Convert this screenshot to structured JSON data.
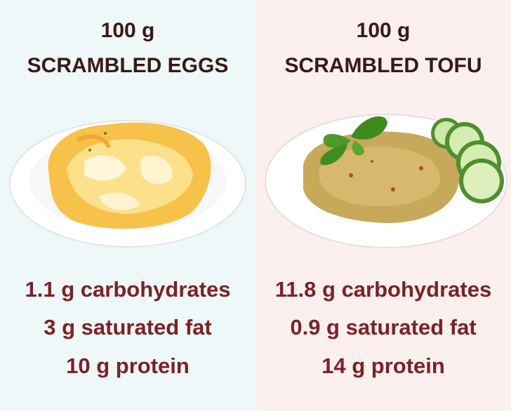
{
  "panels": [
    {
      "title": [
        "100 g",
        "SCRAMBLED EGGS"
      ],
      "facts": [
        "1.1 g carbohydrates",
        "3 g saturated fat",
        "10 g protein"
      ]
    },
    {
      "title": [
        "100 g",
        "SCRAMBLED TOFU"
      ],
      "facts": [
        "11.8 g carbohydrates",
        "0.9 g saturated fat",
        "14 g protein"
      ]
    }
  ]
}
